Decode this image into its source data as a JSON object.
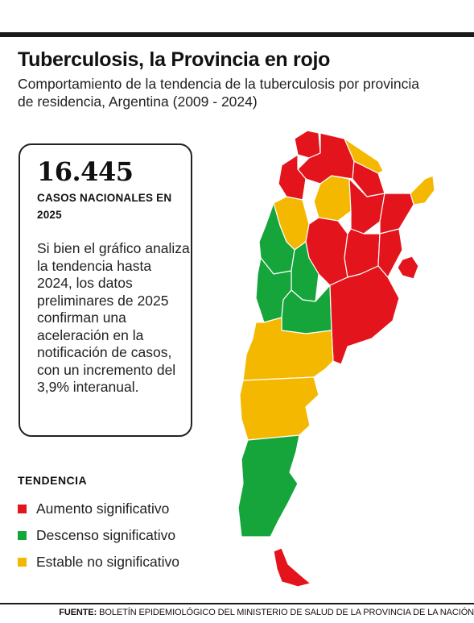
{
  "header": {
    "title": "Tuberculosis, la Provincia en rojo",
    "subtitle": "Comportamiento de la tendencia de la tuberculosis por provincia de residencia, Argentina (2009 - 2024)"
  },
  "stat": {
    "number": "16.445",
    "caption": "CASOS NACIONALES EN 2025",
    "text": "Si bien el gráfico analiza la tendencia hasta 2024, los datos preliminares de 2025 confirman una aceleración en la notificación de casos, con un incremento del 3,9% interanual."
  },
  "legend": {
    "title": "TENDENCIA",
    "items": [
      {
        "label": "Aumento significativo",
        "color": "#e3141b"
      },
      {
        "label": "Descenso significativo",
        "color": "#15a53a"
      },
      {
        "label": "Estable no significativo",
        "color": "#f5b800"
      }
    ]
  },
  "source": {
    "label": "FUENTE:",
    "text": "BOLETÍN EPIDEMIOLÓGICO DEL MINISTERIO DE SALUD DE LA PROVINCIA DE LA NACIÓN"
  }
}
